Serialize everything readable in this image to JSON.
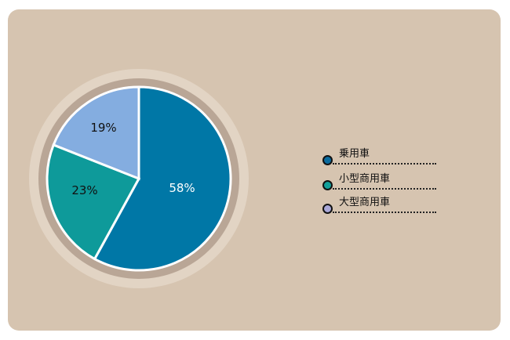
{
  "chart_data": {
    "type": "pie",
    "start": "top",
    "direction": "clockwise",
    "slices": [
      {
        "label": "乗用車",
        "value": 58,
        "data_label": "58%",
        "color": "#0077a6",
        "legend_color": "#0a6b9e",
        "label_color": "#ffffff"
      },
      {
        "label": "小型商用車",
        "value": 23,
        "data_label": "23%",
        "color": "#0e9a9a",
        "legend_color": "#13a09a",
        "label_color": "#111111"
      },
      {
        "label": "大型商用車",
        "value": 19,
        "data_label": "19%",
        "color": "#84ade0",
        "legend_color": "#aaa8d8",
        "label_color": "#111111"
      }
    ],
    "legend_position": "right",
    "background": "#d6c4b0"
  }
}
